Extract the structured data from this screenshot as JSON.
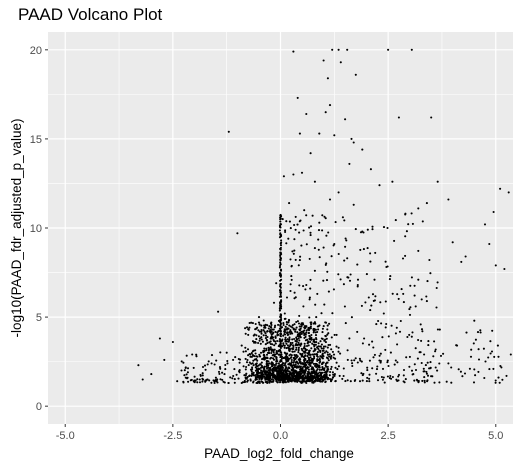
{
  "chart_data": {
    "type": "scatter",
    "title": "PAAD Volcano Plot",
    "xlabel": "PAAD_log2_fold_change",
    "ylabel": "-log10(PAAD_fdr_adjusted_p_value)",
    "xlim": [
      -5.4,
      5.4
    ],
    "ylim": [
      -1,
      21
    ],
    "x_ticks": [
      -5.0,
      -2.5,
      0.0,
      2.5,
      5.0
    ],
    "x_tick_labels": [
      "-5.0",
      "-2.5",
      "0.0",
      "2.5",
      "5.0"
    ],
    "y_ticks": [
      0,
      5,
      10,
      15,
      20
    ],
    "y_tick_labels": [
      "0",
      "5",
      "10",
      "15",
      "20"
    ],
    "grid": true,
    "legend": "none",
    "colors": {
      "panel": "#ebebeb",
      "grid": "#ffffff",
      "point": "#000000"
    },
    "points_dense_cloud": "approximately 1500 genes concentrated at x 0 to 1, y 1.3 to 4",
    "points": [
      [
        -3.3,
        2.3
      ],
      [
        -3.2,
        1.5
      ],
      [
        -3.0,
        1.8
      ],
      [
        -2.8,
        3.8
      ],
      [
        -2.7,
        2.6
      ],
      [
        -2.5,
        3.6
      ],
      [
        -2.4,
        1.4
      ],
      [
        -2.3,
        2.0
      ],
      [
        -2.2,
        1.6
      ],
      [
        -2.15,
        1.9
      ],
      [
        -2.05,
        2.9
      ],
      [
        -1.95,
        2.8
      ],
      [
        -1.85,
        1.7
      ],
      [
        -1.8,
        2.2
      ],
      [
        -1.7,
        1.5
      ],
      [
        -1.6,
        2.4
      ],
      [
        -1.5,
        1.6
      ],
      [
        -1.45,
        5.3
      ],
      [
        -1.4,
        2.1
      ],
      [
        -1.3,
        1.8
      ],
      [
        -1.25,
        3.0
      ],
      [
        -1.2,
        15.4
      ],
      [
        -1.1,
        2.6
      ],
      [
        -1.0,
        9.7
      ],
      [
        -0.95,
        1.9
      ],
      [
        -0.9,
        3.4
      ],
      [
        -0.8,
        2.2
      ],
      [
        -0.75,
        4.0
      ],
      [
        -0.7,
        2.9
      ],
      [
        -0.6,
        3.6
      ],
      [
        -0.55,
        2.4
      ],
      [
        -0.5,
        5.0
      ],
      [
        -0.45,
        2.0
      ],
      [
        -0.4,
        3.1
      ],
      [
        -0.35,
        4.4
      ],
      [
        -0.3,
        2.7
      ],
      [
        -0.2,
        3.8
      ],
      [
        -0.15,
        5.8
      ],
      [
        -0.1,
        6.9
      ],
      [
        -0.05,
        4.2
      ],
      [
        0.3,
        19.9
      ],
      [
        0.4,
        17.3
      ],
      [
        0.45,
        15.3
      ],
      [
        0.5,
        13.1
      ],
      [
        0.6,
        16.4
      ],
      [
        0.7,
        14.2
      ],
      [
        0.8,
        12.6
      ],
      [
        0.9,
        15.3
      ],
      [
        1.0,
        19.4
      ],
      [
        1.05,
        16.5
      ],
      [
        1.1,
        18.4
      ],
      [
        1.15,
        16.9
      ],
      [
        1.2,
        20.0
      ],
      [
        1.25,
        15.2
      ],
      [
        1.35,
        20.0
      ],
      [
        1.4,
        19.3
      ],
      [
        1.5,
        16.1
      ],
      [
        1.55,
        20.0
      ],
      [
        1.6,
        13.6
      ],
      [
        1.65,
        15.0
      ],
      [
        1.7,
        14.8
      ],
      [
        1.75,
        18.6
      ],
      [
        1.9,
        14.4
      ],
      [
        2.1,
        13.3
      ],
      [
        2.3,
        12.4
      ],
      [
        2.5,
        20.0
      ],
      [
        2.6,
        12.6
      ],
      [
        2.75,
        16.2
      ],
      [
        2.9,
        10.8
      ],
      [
        3.05,
        20.0
      ],
      [
        3.2,
        11.1
      ],
      [
        3.4,
        11.4
      ],
      [
        3.5,
        16.2
      ],
      [
        3.65,
        12.6
      ],
      [
        3.9,
        11.6
      ],
      [
        4.0,
        9.2
      ],
      [
        4.2,
        8.1
      ],
      [
        4.3,
        8.4
      ],
      [
        4.5,
        4.8
      ],
      [
        4.6,
        3.2
      ],
      [
        4.75,
        10.2
      ],
      [
        4.85,
        9.1
      ],
      [
        4.95,
        10.9
      ],
      [
        5.0,
        7.9
      ],
      [
        5.1,
        12.2
      ],
      [
        5.2,
        7.7
      ],
      [
        5.3,
        12.0
      ],
      [
        5.35,
        2.9
      ],
      [
        5.05,
        3.4
      ],
      [
        5.25,
        1.7
      ],
      [
        4.4,
        2.1
      ],
      [
        4.1,
        3.4
      ],
      [
        3.9,
        2.4
      ],
      [
        3.7,
        4.3
      ],
      [
        3.55,
        2.8
      ],
      [
        3.4,
        5.9
      ],
      [
        3.2,
        7.1
      ],
      [
        3.05,
        3.9
      ],
      [
        2.85,
        6.3
      ],
      [
        2.7,
        4.4
      ],
      [
        2.55,
        7.3
      ],
      [
        2.4,
        5.2
      ],
      [
        2.2,
        8.6
      ],
      [
        2.05,
        6.1
      ],
      [
        1.9,
        9.8
      ],
      [
        1.8,
        7.1
      ],
      [
        1.7,
        11.3
      ],
      [
        1.55,
        8.3
      ],
      [
        1.45,
        10.6
      ],
      [
        1.35,
        12.0
      ],
      [
        1.25,
        9.1
      ],
      [
        1.15,
        11.6
      ],
      [
        1.0,
        8.9
      ],
      [
        0.9,
        10.3
      ],
      [
        0.8,
        7.6
      ],
      [
        0.7,
        9.6
      ],
      [
        0.6,
        6.8
      ],
      [
        0.55,
        11.0
      ],
      [
        0.45,
        8.2
      ],
      [
        0.35,
        9.9
      ],
      [
        0.25,
        7.3
      ],
      [
        0.15,
        6.1
      ],
      [
        0.1,
        4.9
      ],
      [
        0.2,
        11.4
      ],
      [
        0.3,
        13.0
      ],
      [
        0.08,
        12.9
      ],
      [
        0.05,
        10.5
      ]
    ]
  }
}
